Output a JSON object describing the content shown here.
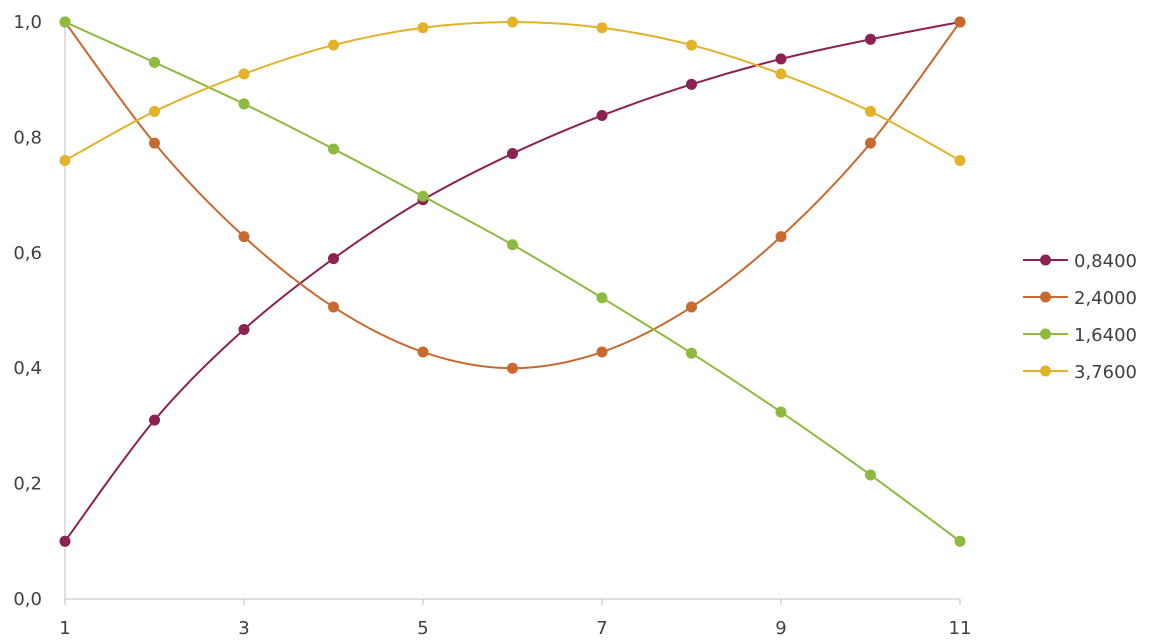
{
  "chart_data": {
    "type": "line",
    "title": "",
    "xlabel": "",
    "ylabel": "",
    "x": [
      1,
      2,
      3,
      4,
      5,
      6,
      7,
      8,
      9,
      10,
      11
    ],
    "xlim": [
      1,
      11
    ],
    "ylim": [
      0,
      1
    ],
    "x_ticks": [
      "1",
      "3",
      "5",
      "7",
      "9",
      "11"
    ],
    "y_ticks": [
      "0,0",
      "0,2",
      "0,4",
      "0,6",
      "0,8",
      "1,0"
    ],
    "grid": false,
    "smooth": true,
    "legend_position": "right",
    "series": [
      {
        "name": "0,8400",
        "color": "#8B2252",
        "values": [
          0.1,
          0.31,
          0.467,
          0.59,
          0.692,
          0.772,
          0.838,
          0.892,
          0.936,
          0.97,
          1.0
        ]
      },
      {
        "name": "2,4000",
        "color": "#C8692F",
        "values": [
          1.0,
          0.79,
          0.628,
          0.506,
          0.428,
          0.4,
          0.428,
          0.506,
          0.628,
          0.79,
          1.0
        ]
      },
      {
        "name": "1,6400",
        "color": "#8DBA3F",
        "values": [
          1.0,
          0.93,
          0.858,
          0.78,
          0.698,
          0.614,
          0.522,
          0.426,
          0.324,
          0.215,
          0.1
        ]
      },
      {
        "name": "3,7600",
        "color": "#E3B22B",
        "values": [
          0.76,
          0.845,
          0.91,
          0.96,
          0.99,
          1.0,
          0.99,
          0.96,
          0.91,
          0.845,
          0.76
        ]
      }
    ]
  }
}
